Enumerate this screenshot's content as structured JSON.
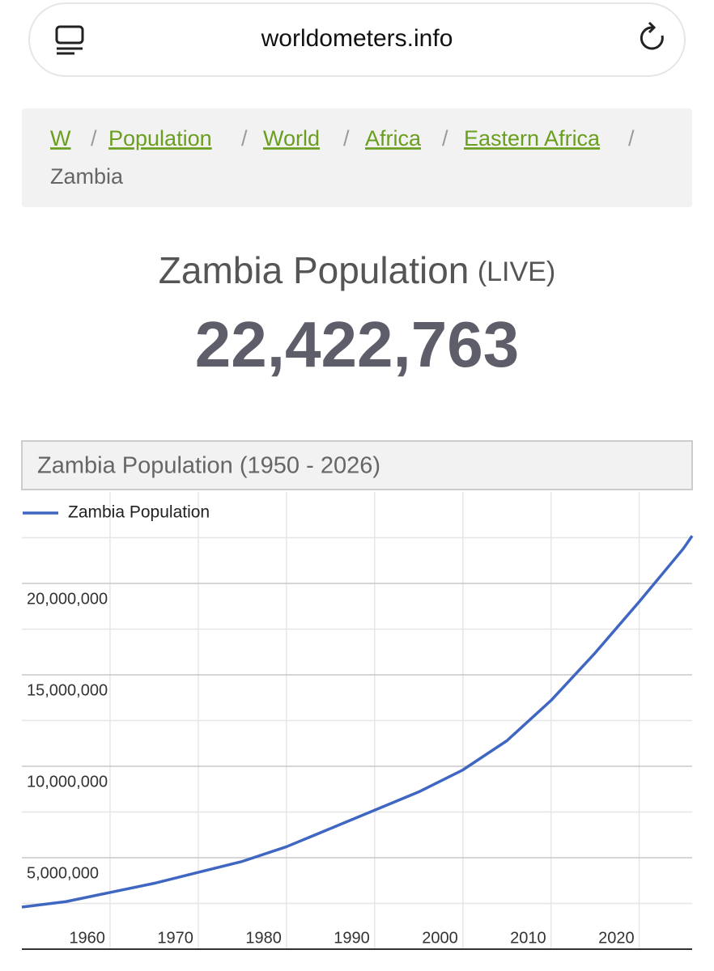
{
  "browser": {
    "url": "worldometers.info"
  },
  "breadcrumb": {
    "separator": "/",
    "links": [
      "W",
      "Population",
      "World",
      "Africa",
      "Eastern Africa"
    ],
    "current": "Zambia"
  },
  "heading": {
    "title": "Zambia Population",
    "suffix": "(LIVE)",
    "counter": "22,422,763"
  },
  "chart_data": {
    "type": "line",
    "title": "Zambia Population (1950 - 2026)",
    "x": [
      1950,
      1955,
      1960,
      1965,
      1970,
      1975,
      1980,
      1985,
      1990,
      1995,
      2000,
      2005,
      2010,
      2015,
      2020,
      2025,
      2026
    ],
    "series": [
      {
        "name": "Zambia Population",
        "color": "#3f67c2",
        "values": [
          2300000,
          2600000,
          3100000,
          3600000,
          4200000,
          4800000,
          5600000,
          6600000,
          7600000,
          8600000,
          9800000,
          11400000,
          13600000,
          16200000,
          19000000,
          21900000,
          22600000
        ]
      }
    ],
    "xlim": [
      1950,
      2026
    ],
    "xticks": [
      1960,
      1970,
      1980,
      1990,
      2000,
      2010,
      2020
    ],
    "ylim": [
      0,
      25000000
    ],
    "yticks": [
      {
        "value": 5000000,
        "label": "5,000,000"
      },
      {
        "value": 10000000,
        "label": "10,000,000"
      },
      {
        "value": 15000000,
        "label": "15,000,000"
      },
      {
        "value": 20000000,
        "label": "20,000,000"
      }
    ],
    "minor_yticks": [
      2500000,
      7500000,
      12500000,
      17500000,
      22500000
    ],
    "grid": true,
    "legend": "top-left"
  }
}
